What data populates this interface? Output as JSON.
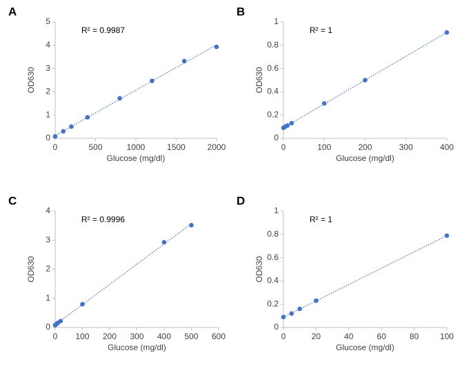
{
  "chart_data": [
    {
      "type": "scatter",
      "panel": "A",
      "annotation": "R² = 0.9987",
      "xlabel": "Glucose (mg/dl)",
      "ylabel": "OD630",
      "color": "#4472c4",
      "trendline": true,
      "x": [
        0,
        100,
        200,
        400,
        800,
        1200,
        1600,
        2000
      ],
      "y": [
        0.08,
        0.3,
        0.5,
        0.9,
        1.72,
        2.47,
        3.32,
        3.93
      ],
      "xlim": [
        0,
        2000
      ],
      "xticks": [
        0,
        500,
        1000,
        1500,
        2000
      ],
      "ylim": [
        0,
        5
      ],
      "yticks": [
        0,
        1,
        2,
        3,
        4,
        5
      ]
    },
    {
      "type": "scatter",
      "panel": "B",
      "annotation": "R² = 1",
      "xlabel": "Glucose (mg/dl)",
      "ylabel": "OD630",
      "color": "#4472c4",
      "trendline": true,
      "x": [
        0,
        5,
        10,
        20,
        100,
        200,
        400
      ],
      "y": [
        0.09,
        0.1,
        0.11,
        0.13,
        0.3,
        0.5,
        0.91
      ],
      "xlim": [
        0,
        400
      ],
      "xticks": [
        0,
        100,
        200,
        300,
        400
      ],
      "ylim": [
        0,
        1
      ],
      "yticks": [
        0,
        0.2,
        0.4,
        0.6,
        0.8,
        1
      ]
    },
    {
      "type": "scatter",
      "panel": "C",
      "annotation": "R² = 0.9996",
      "xlabel": "Glucose (mg/dl)",
      "ylabel": "OD630",
      "color": "#4472c4",
      "trendline": true,
      "x": [
        0,
        5,
        10,
        20,
        100,
        400,
        500
      ],
      "y": [
        0.08,
        0.12,
        0.16,
        0.22,
        0.8,
        2.93,
        3.52
      ],
      "xlim": [
        0,
        600
      ],
      "xticks": [
        0,
        100,
        200,
        300,
        400,
        500,
        600
      ],
      "ylim": [
        0,
        4
      ],
      "yticks": [
        0,
        1,
        2,
        3,
        4
      ]
    },
    {
      "type": "scatter",
      "panel": "D",
      "annotation": "R² = 1",
      "xlabel": "Glucose (mg/dl)",
      "ylabel": "OD630",
      "color": "#4472c4",
      "trendline": true,
      "x": [
        0,
        5,
        10,
        20,
        100
      ],
      "y": [
        0.09,
        0.12,
        0.16,
        0.23,
        0.79
      ],
      "xlim": [
        0,
        100
      ],
      "xticks": [
        0,
        20,
        40,
        60,
        80,
        100
      ],
      "ylim": [
        0,
        1
      ],
      "yticks": [
        0,
        0.2,
        0.4,
        0.6,
        0.8,
        1
      ]
    }
  ]
}
